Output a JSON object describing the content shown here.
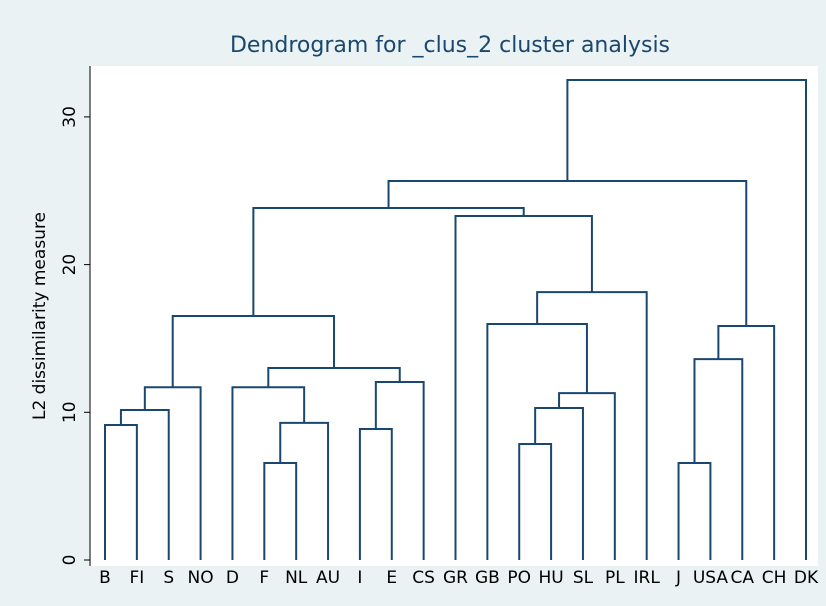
{
  "chart_data": {
    "type": "dendrogram",
    "title": "Dendrogram for _clus_2 cluster analysis",
    "y_label": "L2 dissimilarity measure",
    "color": "#1a476f",
    "leaves": [
      "B",
      "FI",
      "S",
      "NO",
      "D",
      "F",
      "NL",
      "AU",
      "I",
      "E",
      "CS",
      "GR",
      "GB",
      "PO",
      "HU",
      "SL",
      "PL",
      "IRL",
      "J",
      "USA",
      "CA",
      "CH",
      "DK"
    ],
    "merges": [
      {
        "children": [
          0,
          1
        ],
        "height": 9.14
      },
      {
        "children": [
          23,
          2
        ],
        "height": 10.16
      },
      {
        "children": [
          24,
          3
        ],
        "height": 11.7
      },
      {
        "children": [
          5,
          6
        ],
        "height": 6.57
      },
      {
        "children": [
          26,
          7
        ],
        "height": 9.28
      },
      {
        "children": [
          4,
          27
        ],
        "height": 11.7
      },
      {
        "children": [
          8,
          9
        ],
        "height": 8.87
      },
      {
        "children": [
          29,
          10
        ],
        "height": 12.05
      },
      {
        "children": [
          28,
          30
        ],
        "height": 13.0
      },
      {
        "children": [
          25,
          31
        ],
        "height": 16.52
      },
      {
        "children": [
          13,
          14
        ],
        "height": 7.85
      },
      {
        "children": [
          33,
          15
        ],
        "height": 10.29
      },
      {
        "children": [
          34,
          16
        ],
        "height": 11.3
      },
      {
        "children": [
          12,
          35
        ],
        "height": 15.98
      },
      {
        "children": [
          36,
          17
        ],
        "height": 18.14
      },
      {
        "children": [
          11,
          37
        ],
        "height": 23.29
      },
      {
        "children": [
          32,
          38
        ],
        "height": 23.83
      },
      {
        "children": [
          18,
          19
        ],
        "height": 6.57
      },
      {
        "children": [
          40,
          20
        ],
        "height": 13.6
      },
      {
        "children": [
          41,
          21
        ],
        "height": 15.84
      },
      {
        "children": [
          39,
          42
        ],
        "height": 25.66
      },
      {
        "children": [
          43,
          22
        ],
        "height": 32.5
      }
    ],
    "ylim": [
      0,
      33
    ],
    "yticks": [
      0,
      10,
      20,
      30
    ]
  }
}
